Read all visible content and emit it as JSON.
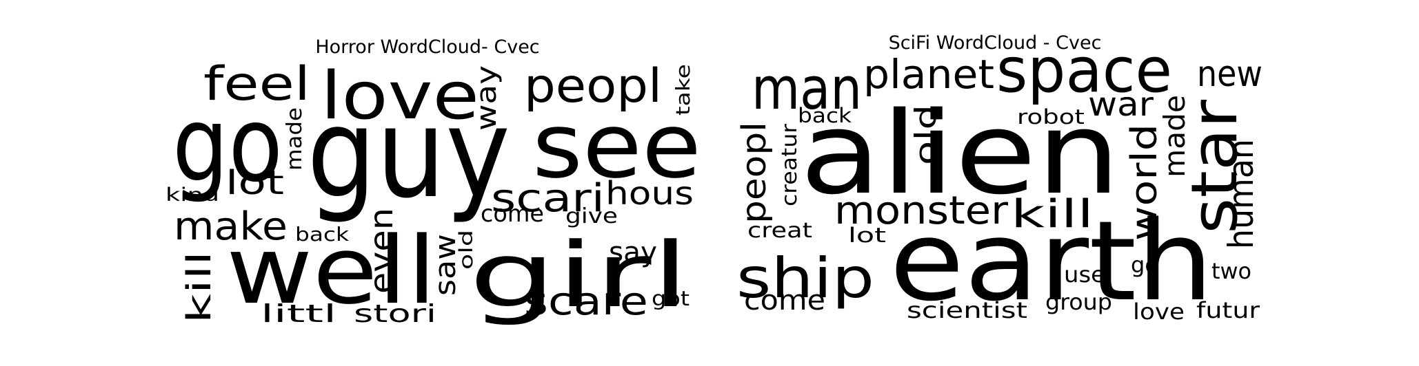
{
  "panels": [
    {
      "title": "Horror WordCloud- Cvec",
      "words": [
        "guy",
        "see",
        "go",
        "love",
        "well",
        "girl",
        "peopl",
        "feel",
        "scari",
        "make",
        "scare",
        "hous",
        "lot",
        "way",
        "kill",
        "even",
        "saw",
        "say",
        "stori",
        "littl",
        "made",
        "come",
        "give",
        "take",
        "back",
        "old",
        "kind",
        "got"
      ]
    },
    {
      "title": "SciFi WordCloud - Cvec",
      "words": [
        "alien",
        "earth",
        "space",
        "man",
        "planet",
        "star",
        "ship",
        "monster",
        "kill",
        "new",
        "war",
        "world",
        "human",
        "peopl",
        "made",
        "old",
        "creatur",
        "back",
        "robot",
        "come",
        "creat",
        "lot",
        "scientist",
        "group",
        "use",
        "go",
        "two",
        "love",
        "futur"
      ]
    }
  ],
  "colors": {
    "background": "#ffffff",
    "text": "#000000"
  }
}
